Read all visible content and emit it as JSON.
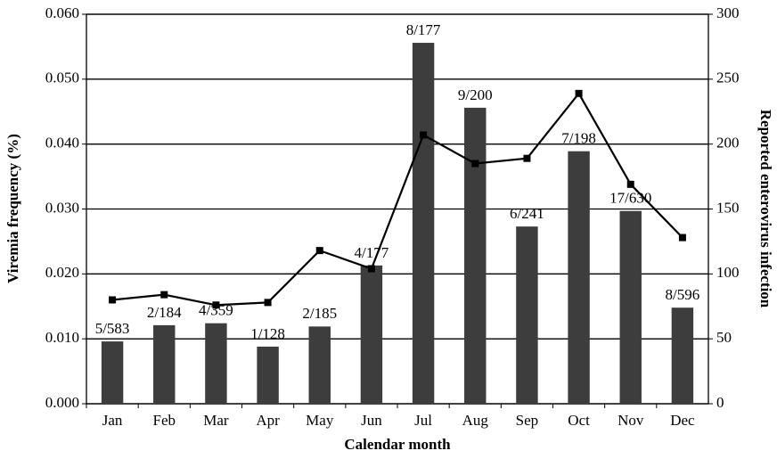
{
  "chart_data": {
    "type": "bar_line",
    "x_label": "Calendar month",
    "y_label": "Viremia frequency (%)",
    "y2_label": "Reported enterovirus infection",
    "categories": [
      "Jan",
      "Feb",
      "Mar",
      "Apr",
      "May",
      "Jun",
      "Jul",
      "Aug",
      "Sep",
      "Oct",
      "Nov",
      "Dec"
    ],
    "series": [
      {
        "name": "Viremia frequency (%)",
        "type": "bar",
        "color": "#3d3d3d",
        "values": [
          0.0096,
          0.0121,
          0.0124,
          0.0088,
          0.0119,
          0.0213,
          0.0556,
          0.0456,
          0.0273,
          0.0389,
          0.0297,
          0.0148
        ],
        "annotations": [
          "5/583",
          "2/184",
          "4/359",
          "1/128",
          "2/185",
          "4/177",
          "8/177",
          "9/200",
          "6/241",
          "7/198",
          "17/630",
          "8/596"
        ]
      },
      {
        "name": "Reported enterovirus infection",
        "type": "line",
        "axis": "y2",
        "color": "#000000",
        "values": [
          80,
          84,
          76,
          78,
          118,
          104,
          207,
          185,
          189,
          239,
          169,
          128
        ]
      }
    ],
    "ylim": [
      0,
      0.06
    ],
    "yticks": [
      {
        "value": 0,
        "label": "0.000"
      },
      {
        "value": 0.01,
        "label": "0.010"
      },
      {
        "value": 0.02,
        "label": "0.020"
      },
      {
        "value": 0.03,
        "label": "0.030"
      },
      {
        "value": 0.04,
        "label": "0.040"
      },
      {
        "value": 0.05,
        "label": "0.050"
      },
      {
        "value": 0.06,
        "label": "0.060"
      }
    ],
    "y2lim": [
      0,
      300
    ],
    "y2ticks": [
      0,
      50,
      100,
      150,
      200,
      250,
      300
    ],
    "grid": true
  }
}
